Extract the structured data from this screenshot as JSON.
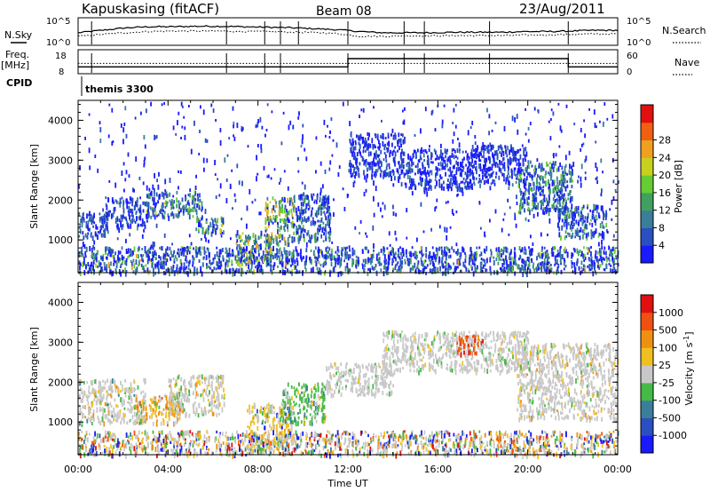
{
  "header": {
    "station": "Kapuskasing (fitACF)",
    "beam": "Beam 08",
    "date": "23/Aug/2011"
  },
  "side_labels": {
    "nsky": "N.Sky",
    "freq_top": "Freq.",
    "freq_unit": "[MHz]",
    "cpid": "CPID",
    "nsearch": "N.Search",
    "nave": "Nave",
    "cpid_value": "themis 3300"
  },
  "chart_data": [
    {
      "type": "line",
      "title": "N.Sky / N.Search",
      "y_ticks_left": [
        "10^5",
        "10^0"
      ],
      "y_ticks_right": [
        "10^5",
        "10^0"
      ],
      "series": [
        {
          "name": "N.Sky",
          "style": "solid",
          "profile": [
            0.45,
            0.55,
            0.65,
            0.7,
            0.7,
            0.72,
            0.72,
            0.7,
            0.68,
            0.66,
            0.62,
            0.58,
            0.5,
            0.45,
            0.45,
            0.45,
            0.47,
            0.47,
            0.47,
            0.5,
            0.5,
            0.52,
            0.55,
            0.55
          ]
        },
        {
          "name": "N.Search",
          "style": "dotted",
          "profile": [
            0.3,
            0.38,
            0.45,
            0.5,
            0.52,
            0.52,
            0.52,
            0.5,
            0.5,
            0.48,
            0.46,
            0.42,
            0.3,
            0.3,
            0.32,
            0.32,
            0.33,
            0.33,
            0.33,
            0.35,
            0.36,
            0.38,
            0.4,
            0.4
          ]
        }
      ]
    },
    {
      "type": "line",
      "title": "Freq / Nave",
      "y_ticks_left": [
        "18",
        "8"
      ],
      "y_ticks_right": [
        "60",
        "0"
      ],
      "series": [
        {
          "name": "Freq",
          "style": "solid",
          "segments": [
            {
              "from_h": 0,
              "to_h": 12.0,
              "value_mhz": 10.5
            },
            {
              "from_h": 12.0,
              "to_h": 21.8,
              "value_mhz": 14.5
            },
            {
              "from_h": 21.8,
              "to_h": 24,
              "value_mhz": 10.5
            }
          ]
        },
        {
          "name": "Nave",
          "style": "dotted",
          "value": 25
        }
      ]
    },
    {
      "type": "heatmap",
      "title": "Power",
      "ylabel": "Slant Range [km]",
      "ylim": [
        180,
        4500
      ],
      "y_ticks": [
        1000,
        2000,
        3000,
        4000
      ],
      "xlim_hours": [
        0,
        24
      ],
      "colorbar": {
        "label": "Power [dB]",
        "ticks": [
          4,
          8,
          12,
          16,
          20,
          24,
          28
        ],
        "colors": [
          "#1a1aff",
          "#2a4fc0",
          "#3a7f9a",
          "#40a060",
          "#66cc33",
          "#c8d01e",
          "#f0a020",
          "#f06010",
          "#e01010"
        ]
      },
      "blocks": [
        {
          "t0": 0.0,
          "t1": 1.3,
          "r0": 1100,
          "r1": 1700,
          "weights": [
            0.7,
            0.8,
            0.45,
            0.1,
            0.0,
            0.0,
            0.0
          ]
        },
        {
          "t0": 1.2,
          "t1": 3.0,
          "r0": 1350,
          "r1": 2100,
          "weights": [
            0.6,
            0.8,
            0.3,
            0.05,
            0.0,
            0.0,
            0.0
          ]
        },
        {
          "t0": 3.0,
          "t1": 5.5,
          "r0": 1600,
          "r1": 2250,
          "weights": [
            0.5,
            0.7,
            0.55,
            0.4,
            0.2,
            0.05,
            0.0
          ]
        },
        {
          "t0": 5.2,
          "t1": 6.6,
          "r0": 1200,
          "r1": 1600,
          "weights": [
            0.4,
            0.6,
            0.5,
            0.5,
            0.5,
            0.2,
            0.0
          ]
        },
        {
          "t0": 7.0,
          "t1": 8.6,
          "r0": 400,
          "r1": 1200,
          "weights": [
            0.4,
            0.5,
            0.5,
            0.5,
            0.45,
            0.5,
            0.4
          ]
        },
        {
          "t0": 8.3,
          "t1": 9.6,
          "r0": 900,
          "r1": 2100,
          "weights": [
            0.3,
            0.4,
            0.5,
            0.6,
            0.6,
            0.6,
            0.5
          ]
        },
        {
          "t0": 9.5,
          "t1": 11.2,
          "r0": 1000,
          "r1": 2200,
          "weights": [
            0.5,
            0.7,
            0.6,
            0.4,
            0.1,
            0.0,
            0.0
          ]
        },
        {
          "t0": 12.0,
          "t1": 14.5,
          "r0": 2600,
          "r1": 3700,
          "weights": [
            0.8,
            0.7,
            0.1,
            0.0,
            0.0,
            0.0,
            0.0
          ]
        },
        {
          "t0": 14.5,
          "t1": 17.5,
          "r0": 2300,
          "r1": 3300,
          "weights": [
            0.8,
            0.6,
            0.1,
            0.0,
            0.0,
            0.0,
            0.0
          ]
        },
        {
          "t0": 17.5,
          "t1": 20.0,
          "r0": 2400,
          "r1": 3400,
          "weights": [
            0.8,
            0.6,
            0.1,
            0.0,
            0.0,
            0.0,
            0.0
          ]
        },
        {
          "t0": 19.5,
          "t1": 22.0,
          "r0": 1700,
          "r1": 3000,
          "weights": [
            0.5,
            0.6,
            0.55,
            0.45,
            0.25,
            0.0,
            0.0
          ]
        },
        {
          "t0": 21.3,
          "t1": 23.5,
          "r0": 1100,
          "r1": 1900,
          "weights": [
            0.6,
            0.7,
            0.55,
            0.35,
            0.2,
            0.0,
            0.0
          ]
        },
        {
          "t0": 0.0,
          "t1": 24.0,
          "r0": 200,
          "r1": 850,
          "weights": [
            0.8,
            0.55,
            0.4,
            0.3,
            0.15,
            0.05,
            0.02
          ]
        },
        {
          "t0": 0.0,
          "t1": 24.0,
          "r0": 200,
          "r1": 4500,
          "weights": [
            0.9,
            0.3,
            0.05,
            0.0,
            0.0,
            0.0,
            0.0
          ]
        }
      ]
    },
    {
      "type": "heatmap",
      "title": "Velocity",
      "ylabel": "Slant Range [km]",
      "ylim": [
        180,
        4500
      ],
      "y_ticks": [
        1000,
        2000,
        3000,
        4000
      ],
      "xlim_hours": [
        0,
        24
      ],
      "xlabel": "Time UT",
      "x_ticks": [
        "00:00",
        "04:00",
        "08:00",
        "12:00",
        "16:00",
        "20:00",
        "00:00"
      ],
      "colorbar": {
        "label": "Velocity [m s",
        "label_sup": "-1",
        "label_end": "]",
        "ticks": [
          "1000",
          "500",
          "100",
          "25",
          "-25",
          "-100",
          "-500",
          "-1000"
        ],
        "colors": [
          "#1a1aff",
          "#2a4fc0",
          "#3a7f9a",
          "#44bb44",
          "#c8c8c8",
          "#f0c020",
          "#f09010",
          "#f05010",
          "#e01010"
        ]
      },
      "blocks": [
        {
          "t0": 0.0,
          "t1": 3.0,
          "r0": 1000,
          "r1": 2100,
          "weights": [
            0.0,
            0.0,
            0.05,
            0.1,
            0.8,
            0.1,
            0.05,
            0.0,
            0.0
          ]
        },
        {
          "t0": 2.5,
          "t1": 4.5,
          "r0": 1000,
          "r1": 1700,
          "weights": [
            0.0,
            0.0,
            0.0,
            0.05,
            0.2,
            0.3,
            0.4,
            0.05,
            0.0
          ]
        },
        {
          "t0": 4.0,
          "t1": 6.5,
          "r0": 1200,
          "r1": 2200,
          "weights": [
            0.0,
            0.0,
            0.0,
            0.1,
            0.7,
            0.15,
            0.05,
            0.0,
            0.0
          ]
        },
        {
          "t0": 7.5,
          "t1": 9.5,
          "r0": 300,
          "r1": 1500,
          "weights": [
            0.02,
            0.03,
            0.05,
            0.1,
            0.3,
            0.4,
            0.1,
            0.0,
            0.0
          ]
        },
        {
          "t0": 9.0,
          "t1": 11.0,
          "r0": 1000,
          "r1": 2000,
          "weights": [
            0.0,
            0.0,
            0.15,
            0.5,
            0.2,
            0.15,
            0.0,
            0.0,
            0.0
          ]
        },
        {
          "t0": 11.0,
          "t1": 14.0,
          "r0": 1700,
          "r1": 2500,
          "weights": [
            0.0,
            0.0,
            0.0,
            0.05,
            0.9,
            0.05,
            0.0,
            0.0,
            0.0
          ]
        },
        {
          "t0": 13.5,
          "t1": 20.0,
          "r0": 2300,
          "r1": 3300,
          "weights": [
            0.0,
            0.0,
            0.0,
            0.05,
            0.9,
            0.05,
            0.0,
            0.0,
            0.0
          ]
        },
        {
          "t0": 16.8,
          "t1": 18.0,
          "r0": 2700,
          "r1": 3200,
          "weights": [
            0.0,
            0.0,
            0.0,
            0.0,
            0.1,
            0.0,
            0.2,
            0.5,
            0.2
          ]
        },
        {
          "t0": 19.5,
          "t1": 24.0,
          "r0": 1100,
          "r1": 3000,
          "weights": [
            0.0,
            0.0,
            0.0,
            0.05,
            0.85,
            0.05,
            0.05,
            0.0,
            0.0
          ]
        },
        {
          "t0": 0.0,
          "t1": 24.0,
          "r0": 200,
          "r1": 800,
          "weights": [
            0.1,
            0.05,
            0.05,
            0.1,
            0.35,
            0.15,
            0.1,
            0.05,
            0.05
          ]
        }
      ]
    }
  ]
}
